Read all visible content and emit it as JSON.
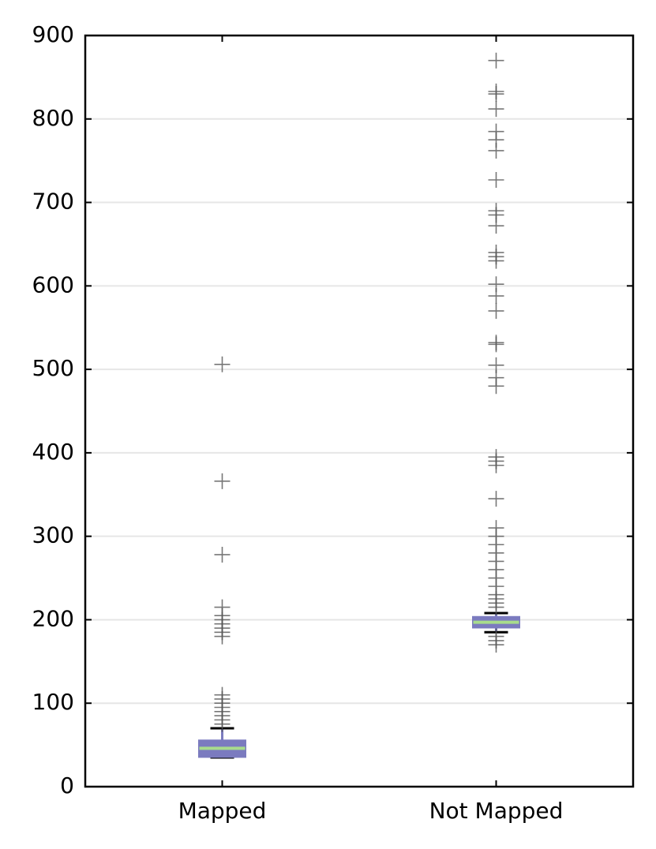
{
  "chart_data": {
    "type": "box",
    "categories": [
      "Mapped",
      "Not Mapped"
    ],
    "ylim": [
      0,
      900
    ],
    "yticks": [
      0,
      100,
      200,
      300,
      400,
      500,
      600,
      700,
      800,
      900
    ],
    "grid": true,
    "box_color": "#7b7bbf",
    "median_color": "#a8dc8c",
    "cap_color": "#000000",
    "flier_color": "#555555",
    "boxes": [
      {
        "whislo": 35,
        "q1": 36,
        "med": 46,
        "q3": 55,
        "whishi": 70,
        "fliers": [
          75,
          80,
          85,
          90,
          95,
          100,
          105,
          110,
          180,
          185,
          190,
          195,
          200,
          205,
          215,
          278,
          366,
          506
        ]
      },
      {
        "whislo": 185,
        "q1": 191,
        "med": 197,
        "q3": 203,
        "whishi": 208,
        "fliers": [
          170,
          175,
          180,
          215,
          220,
          225,
          230,
          240,
          250,
          260,
          270,
          280,
          290,
          300,
          310,
          345,
          385,
          390,
          395,
          480,
          490,
          505,
          530,
          532,
          570,
          588,
          602,
          630,
          635,
          640,
          672,
          685,
          690,
          727,
          762,
          775,
          785,
          812,
          830,
          833,
          870
        ]
      }
    ]
  }
}
